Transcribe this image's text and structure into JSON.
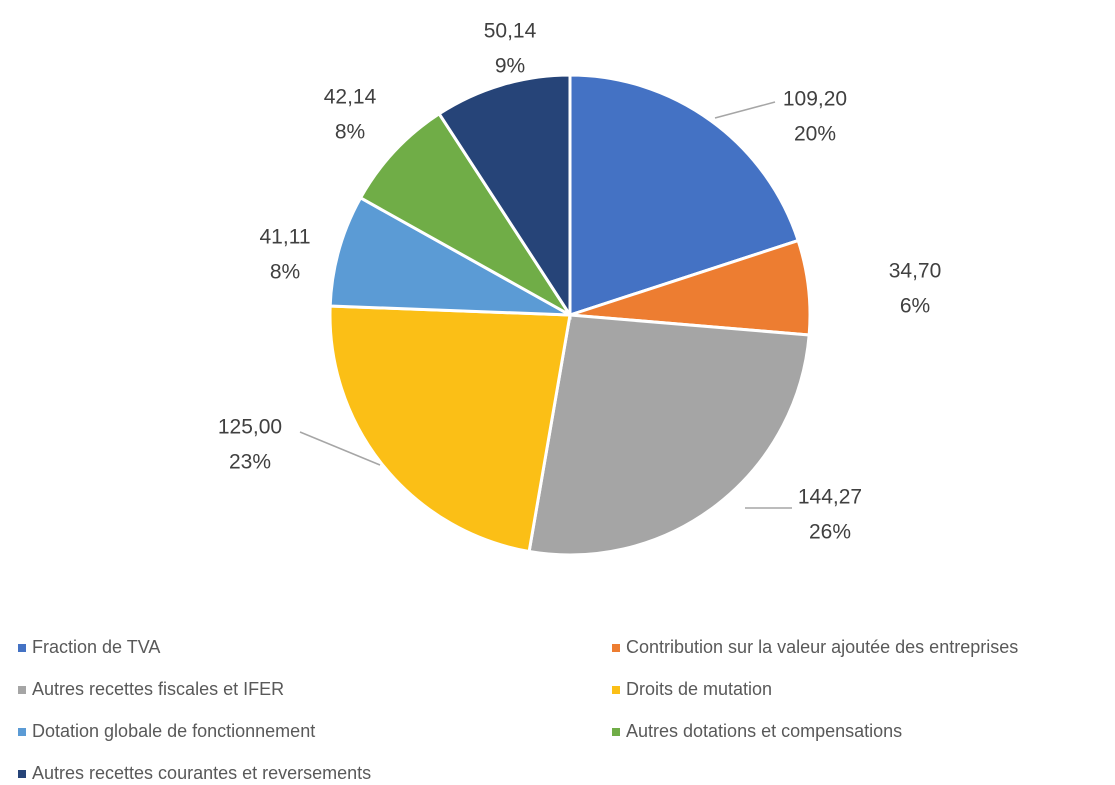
{
  "chart_data": {
    "type": "pie",
    "categories": [
      "Fraction de TVA",
      "Contribution sur la valeur ajoutée des entreprises",
      "Autres recettes fiscales et IFER",
      "Droits de mutation",
      "Dotation globale de fonctionnement",
      "Autres dotations et compensations",
      "Autres  recettes courantes et reversements"
    ],
    "values": [
      109.2,
      34.7,
      144.27,
      125.0,
      41.11,
      42.14,
      50.14
    ],
    "value_labels": [
      "109,20",
      "34,70",
      "144,27",
      "125,00",
      "41,11",
      "42,14",
      "50,14"
    ],
    "percents": [
      20,
      6,
      26,
      23,
      8,
      8,
      9
    ],
    "percent_labels": [
      "20%",
      "6%",
      "26%",
      "23%",
      "8%",
      "8%",
      "9%"
    ],
    "colors": [
      "#4472c4",
      "#ed7d31",
      "#a5a5a5",
      "#fbbf16",
      "#5b9bd5",
      "#70ad47",
      "#264478"
    ],
    "legend": "bottom"
  }
}
